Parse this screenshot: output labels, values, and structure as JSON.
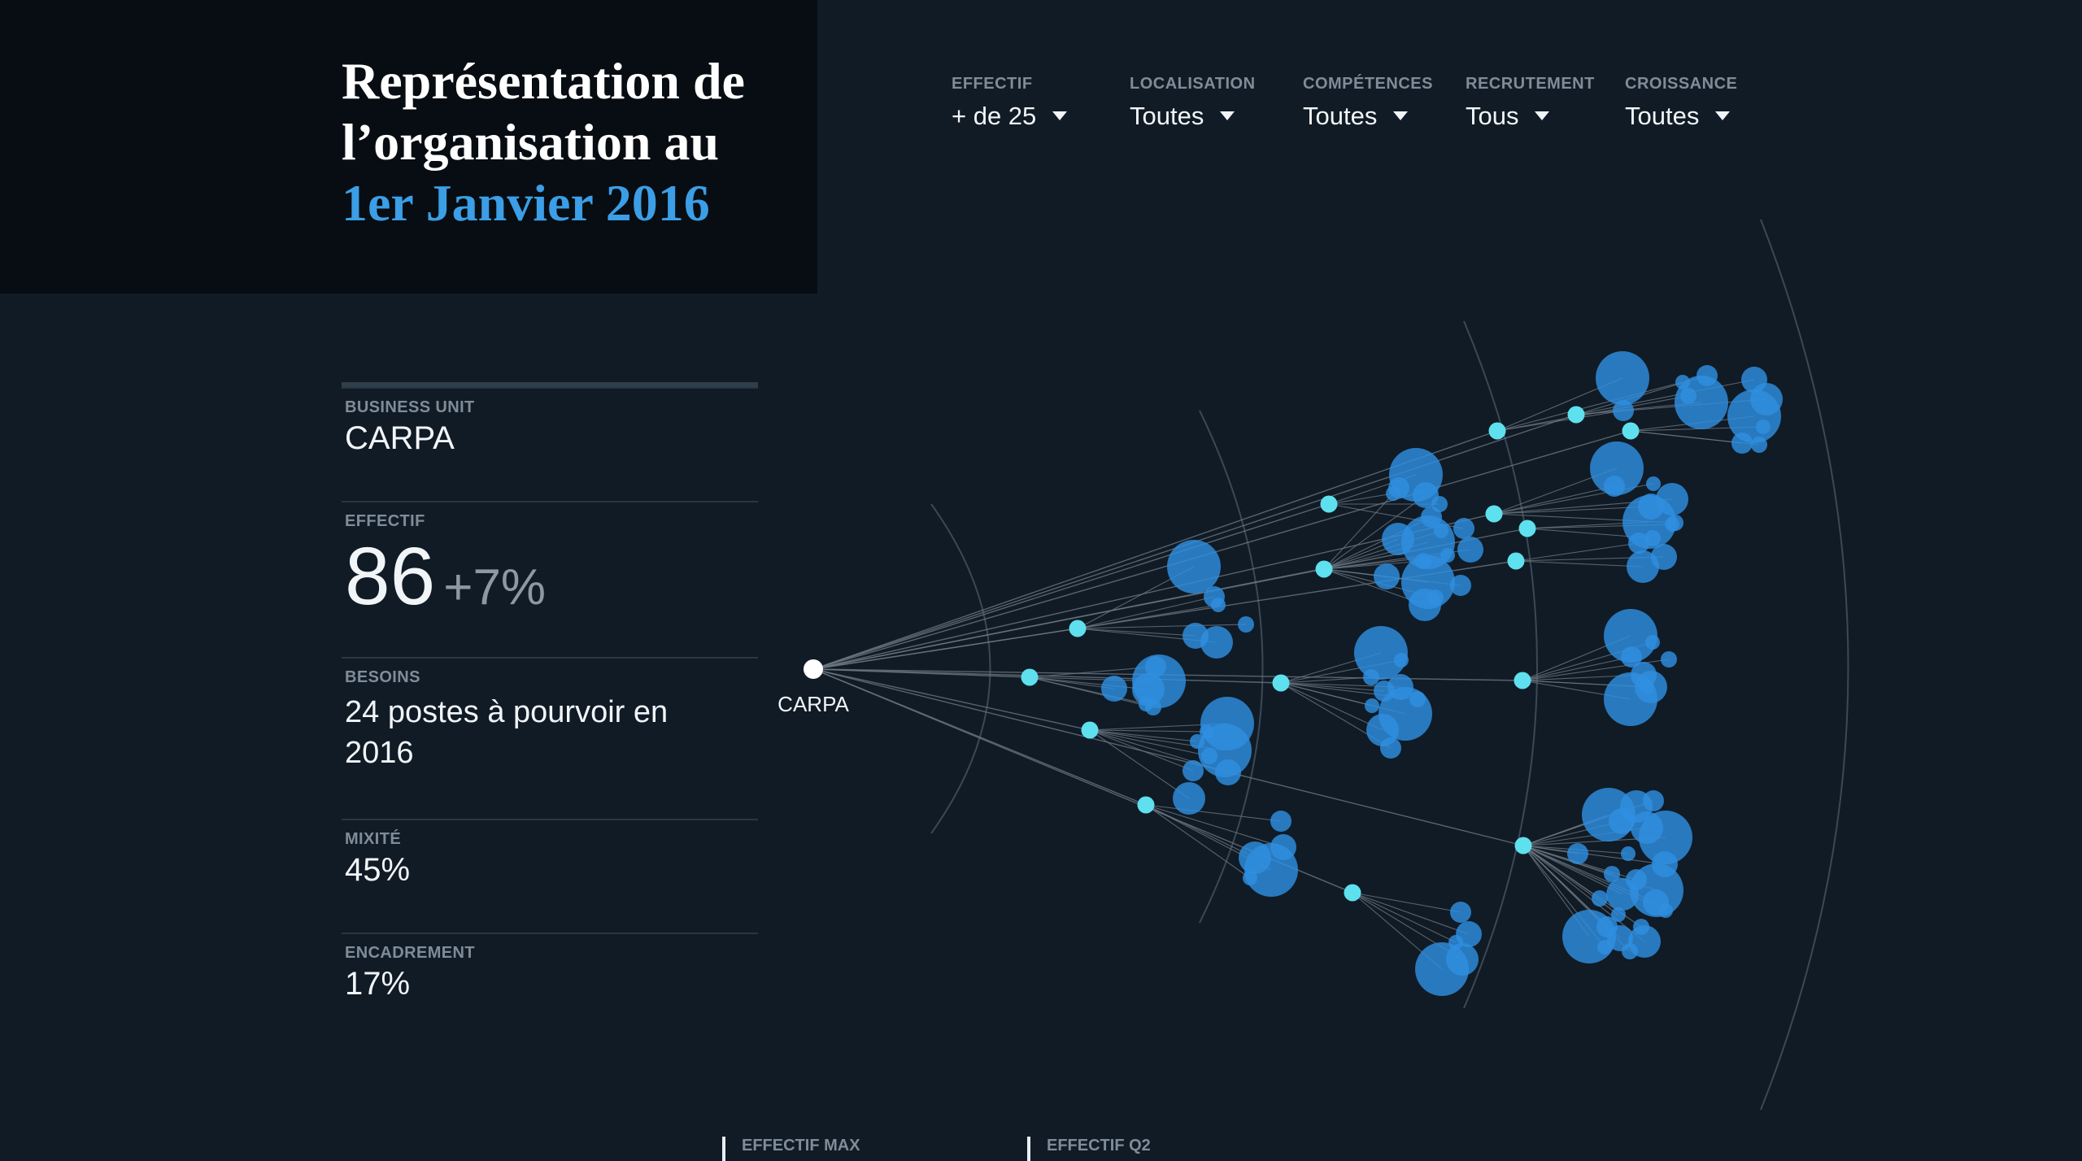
{
  "title": {
    "line1": "Représentation de",
    "line2": "l’organisation au",
    "line3": "1er Janvier 2016"
  },
  "filters": [
    {
      "label": "EFFECTIF",
      "value": "+ de 25"
    },
    {
      "label": "LOCALISATION",
      "value": "Toutes"
    },
    {
      "label": "COMPÉTENCES",
      "value": "Toutes"
    },
    {
      "label": "RECRUTEMENT",
      "value": "Tous"
    },
    {
      "label": "CROISSANCE",
      "value": "Toutes"
    }
  ],
  "stats": {
    "business_unit": {
      "label": "BUSINESS UNIT",
      "value": "CARPA"
    },
    "effectif": {
      "label": "EFFECTIF",
      "value": "86",
      "growth": "+7%"
    },
    "besoins": {
      "label": "BESOINS",
      "value": "24 postes à pourvoir en 2016"
    },
    "mixite": {
      "label": "MIXITÉ",
      "value": "45%"
    },
    "encadrement": {
      "label": "ENCADREMENT",
      "value": "17%"
    }
  },
  "legend": [
    {
      "label": "EFFECTIF MAX"
    },
    {
      "label": "EFFECTIF Q2"
    }
  ],
  "tree": {
    "root_label": "CARPA",
    "colors": {
      "root": "#ffffff",
      "node": "#5ee0ee",
      "leaf": "#2f8fe0",
      "link": "#6b7681",
      "ring": "#3a4957"
    }
  }
}
